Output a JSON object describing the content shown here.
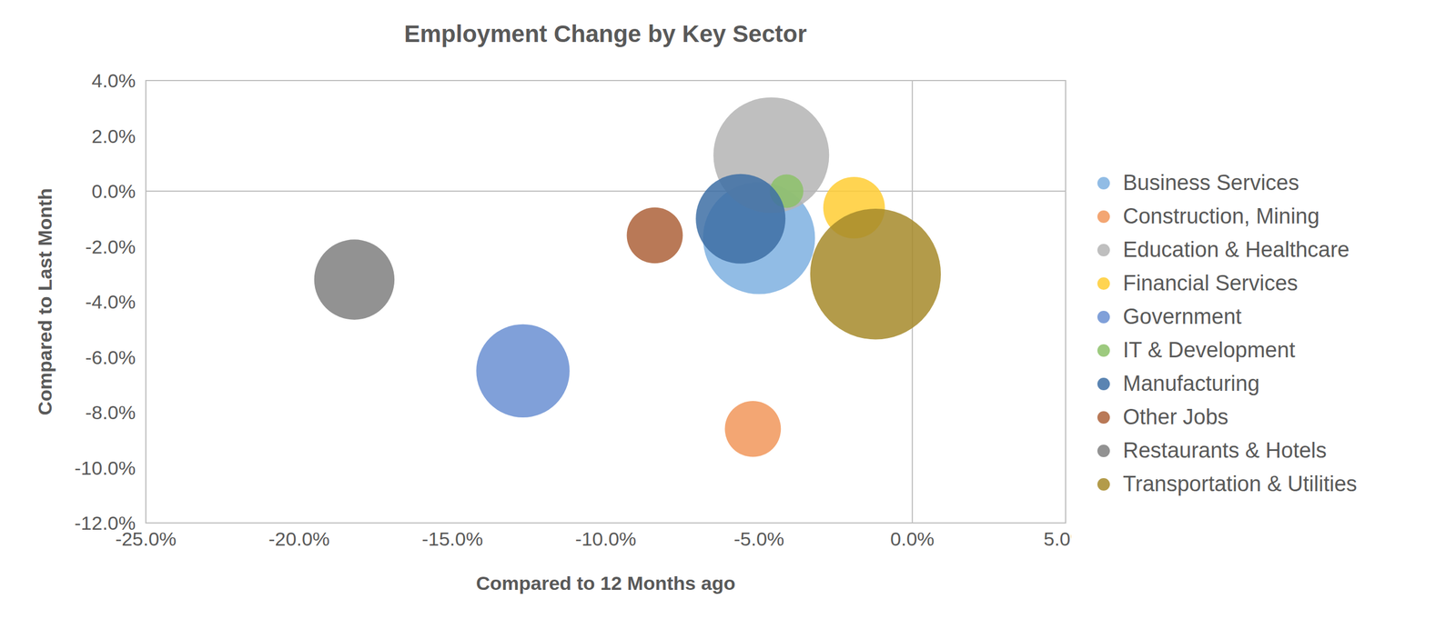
{
  "chart_data": {
    "type": "bubble",
    "title": "Employment Change by Key Sector",
    "x_label": "Compared to 12 Months ago",
    "y_label": "Compared to Last Month",
    "xlim": [
      -25,
      5
    ],
    "xticks": [
      {
        "value": -25,
        "label": "-25.0%"
      },
      {
        "value": -20,
        "label": "-20.0%"
      },
      {
        "value": -15,
        "label": "-15.0%"
      },
      {
        "value": -10,
        "label": "-10.0%"
      },
      {
        "value": -5,
        "label": "-5.0%"
      },
      {
        "value": 0,
        "label": "0.0%"
      },
      {
        "value": 5,
        "label": "5.0%"
      }
    ],
    "ylim": [
      -12,
      4
    ],
    "yticks": [
      {
        "value": -12,
        "label": "-12.0%"
      },
      {
        "value": -10,
        "label": "-10.0%"
      },
      {
        "value": -8,
        "label": "-8.0%"
      },
      {
        "value": -6,
        "label": "-6.0%"
      },
      {
        "value": -4,
        "label": "-4.0%"
      },
      {
        "value": -2,
        "label": "-2.0%"
      },
      {
        "value": 0,
        "label": "0.0%"
      },
      {
        "value": 2,
        "label": "2.0%"
      },
      {
        "value": 4,
        "label": "4.0%"
      }
    ],
    "grid": false,
    "legend": "right",
    "series": [
      {
        "name": "Business Services",
        "color": "#7eb0e0",
        "x": [
          -5.0
        ],
        "y": [
          -1.7
        ],
        "size": [
          3600
        ]
      },
      {
        "name": "Construction, Mining",
        "color": "#f1975a",
        "x": [
          -5.2
        ],
        "y": [
          -8.6
        ],
        "size": [
          900
        ]
      },
      {
        "name": "Education & Healthcare",
        "color": "#b4b4b4",
        "x": [
          -4.6
        ],
        "y": [
          1.3
        ],
        "size": [
          3844
        ]
      },
      {
        "name": "Financial Services",
        "color": "#ffcd33",
        "x": [
          -1.9
        ],
        "y": [
          -0.6
        ],
        "size": [
          1089
        ]
      },
      {
        "name": "Government",
        "color": "#6a8fd2",
        "x": [
          -12.7
        ],
        "y": [
          -6.5
        ],
        "size": [
          2500
        ]
      },
      {
        "name": "IT & Development",
        "color": "#8cc168",
        "x": [
          -4.1
        ],
        "y": [
          0.0
        ],
        "size": [
          324
        ]
      },
      {
        "name": "Manufacturing",
        "color": "#3d6fa5",
        "x": [
          -5.6
        ],
        "y": [
          -1.0
        ],
        "size": [
          2304
        ]
      },
      {
        "name": "Other Jobs",
        "color": "#ad623a",
        "x": [
          -8.4
        ],
        "y": [
          -1.6
        ],
        "size": [
          900
        ]
      },
      {
        "name": "Restaurants & Hotels",
        "color": "#7f7f7f",
        "x": [
          -18.2
        ],
        "y": [
          -3.2
        ],
        "size": [
          1849
        ]
      },
      {
        "name": "Transportation & Utilities",
        "color": "#a6892a",
        "x": [
          -1.2
        ],
        "y": [
          -3.0
        ],
        "size": [
          4900
        ]
      }
    ]
  }
}
